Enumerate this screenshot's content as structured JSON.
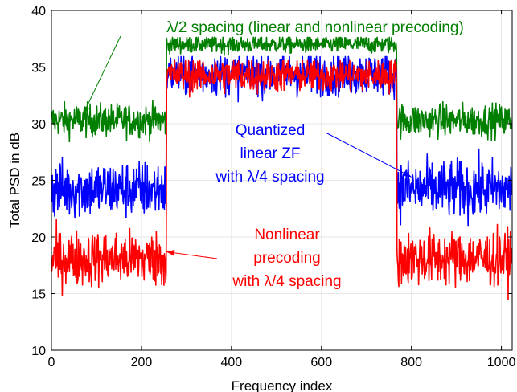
{
  "chart_data": {
    "type": "line",
    "title": "",
    "xlabel": "Frequency index",
    "ylabel": "Total PSD in dB",
    "xlim": [
      0,
      1024
    ],
    "ylim": [
      10,
      40
    ],
    "xticks": [
      0,
      200,
      400,
      600,
      800,
      1000
    ],
    "yticks": [
      10,
      15,
      20,
      25,
      30,
      35,
      40
    ],
    "grid": true,
    "legend": "none",
    "band": {
      "start": 256,
      "end": 768
    },
    "series": [
      {
        "key": "lambda2",
        "color": "#007f00",
        "outband_mean": 30.3,
        "outband_noise": 1.3,
        "inband_mean": 37.0,
        "inband_noise": 0.7
      },
      {
        "key": "quantized_zf",
        "color": "#0000ff",
        "outband_mean": 24.2,
        "outband_noise": 2.3,
        "inband_mean": 34.4,
        "inband_noise": 1.7
      },
      {
        "key": "nonlinear",
        "color": "#ff0000",
        "outband_mean": 18.1,
        "outband_noise": 2.2,
        "inband_mean": 34.3,
        "inband_noise": 1.4
      }
    ],
    "annotations": [
      {
        "key": "green",
        "color": "#007f00",
        "lines": [
          "λ/2 spacing (linear and nonlinear precoding)"
        ],
        "arrow_to": [
          70,
          30.8
        ]
      },
      {
        "key": "blue",
        "color": "#0000ff",
        "lines": [
          "Quantized",
          "linear ZF",
          "with λ/4 spacing"
        ],
        "arrow_to": [
          800,
          25.3
        ]
      },
      {
        "key": "red",
        "color": "#ff0000",
        "lines": [
          "Nonlinear",
          "precoding",
          "with λ/4 spacing"
        ],
        "arrow_to": [
          255,
          18.7
        ]
      }
    ]
  }
}
